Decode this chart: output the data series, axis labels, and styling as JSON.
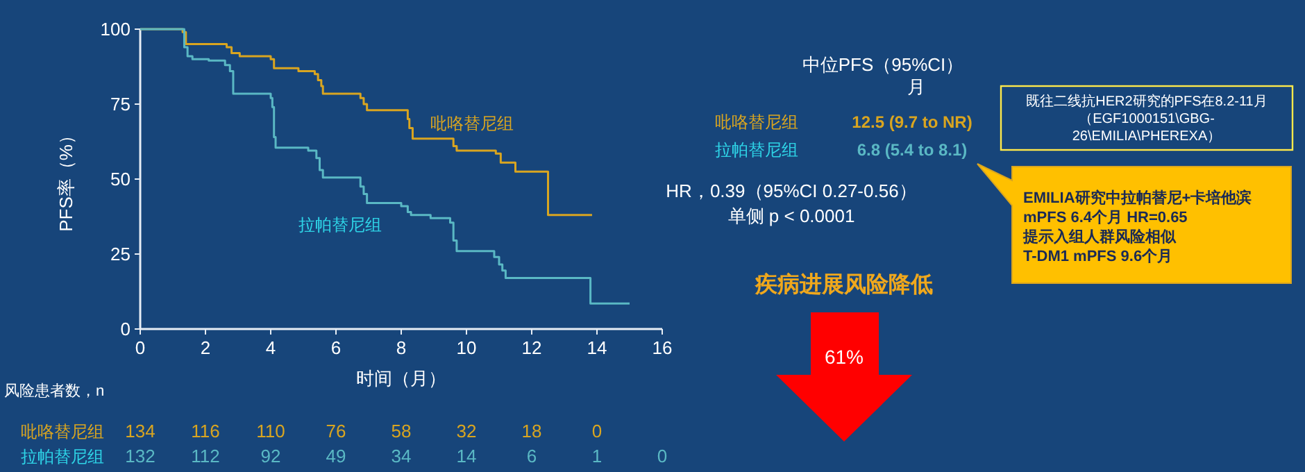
{
  "chart_data": {
    "type": "step",
    "xlabel": "时间（月）",
    "ylabel": "PFS率（%）",
    "xlim": [
      0,
      16
    ],
    "ylim": [
      0,
      100
    ],
    "xticks": [
      0,
      2,
      4,
      6,
      8,
      10,
      12,
      14,
      16
    ],
    "yticks": [
      0,
      25,
      50,
      75,
      100
    ],
    "series": [
      {
        "name": "吡咯替尼组",
        "color": "#d9a520",
        "x": [
          0,
          1.3,
          1.4,
          2.65,
          2.8,
          3.05,
          4.0,
          4.1,
          4.85,
          5.35,
          5.45,
          5.55,
          5.6,
          6.75,
          6.85,
          6.95,
          8.2,
          8.25,
          8.35,
          9.6,
          9.7,
          10.9,
          11.05,
          11.5,
          12.5,
          13.85
        ],
        "values": [
          100,
          99,
          95,
          94,
          92,
          91,
          90,
          87,
          86,
          85,
          83,
          81,
          78.5,
          77,
          75,
          73,
          70,
          67,
          63.5,
          61,
          59.5,
          58.5,
          55.5,
          52.5,
          38,
          38
        ]
      },
      {
        "name": "拉帕替尼组",
        "color": "#5ab8c4",
        "x": [
          0,
          1.35,
          1.45,
          1.6,
          2.1,
          2.6,
          2.75,
          2.85,
          4.0,
          4.05,
          4.1,
          4.15,
          5.15,
          5.4,
          5.5,
          5.6,
          6.75,
          6.85,
          6.95,
          8.0,
          8.2,
          8.3,
          8.9,
          9.5,
          9.6,
          9.7,
          10.85,
          11.0,
          11.1,
          11.2,
          13.8,
          15.0
        ],
        "values": [
          100,
          94,
          91,
          90,
          89.5,
          88,
          86,
          78.5,
          77,
          74,
          64,
          60.5,
          59.5,
          57,
          53,
          50.5,
          47.5,
          45,
          42,
          41,
          39,
          38,
          37,
          35.5,
          29.5,
          26,
          24,
          21.5,
          19.5,
          17,
          8.5,
          8.5
        ]
      }
    ],
    "annotations": [
      "风险患者数，n",
      "吡咯替尼组",
      "134",
      "116",
      "110",
      "76",
      "58",
      "32",
      "18",
      "0",
      "拉帕替尼组",
      "132",
      "112",
      "92",
      "49",
      "34",
      "14",
      "6",
      "1",
      "0",
      "中位PFS（95%CI）",
      "月",
      "吡咯替尼组",
      "12.5 (9.7 to NR)",
      "拉帕替尼组",
      "6.8 (5.4 to 8.1)",
      "HR，0.39（95%CI 0.27-0.56）",
      "单侧 p < 0.0001",
      "既往二线抗HER2研究的PFS在8.2-11月",
      "（EGF1000151\\GBG-",
      "26\\EMILIA\\PHEREXA）",
      "EMILIA研究中拉帕替尼+卡培他滨",
      "mPFS 6.4个月 HR=0.65",
      "提示入组人群风险相似",
      "T-DM1 mPFS 9.6个月",
      "疾病进展风险降低",
      "61%"
    ]
  }
}
